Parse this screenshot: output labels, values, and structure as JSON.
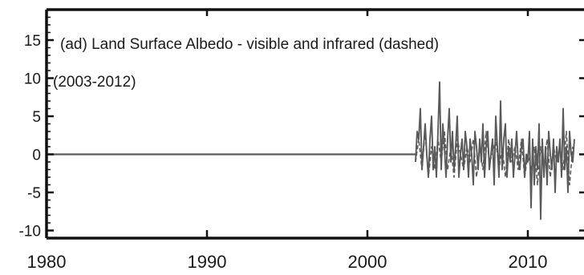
{
  "chart_data": {
    "type": "line",
    "annotation_line1": "(ad) Land Surface Albedo - visible and infrared (dashed)",
    "annotation_line2": "(2003-2012)",
    "xlim": [
      1980,
      2013.5
    ],
    "ylim": [
      -11,
      19
    ],
    "x_ticks": [
      1980,
      1990,
      2000,
      2010
    ],
    "y_ticks": [
      15,
      10,
      5,
      0,
      -5,
      -10
    ],
    "grid": false,
    "colors": {
      "series": "#5a5a5a",
      "zero_line": "#5a5a5a",
      "axes": "#111111"
    },
    "series": [
      {
        "style": "solid",
        "x": [
          2003.0,
          2003.1,
          2003.2,
          2003.3,
          2003.4,
          2003.5,
          2003.6,
          2003.7,
          2003.8,
          2003.9,
          2004.0,
          2004.1,
          2004.2,
          2004.3,
          2004.4,
          2004.5,
          2004.6,
          2004.7,
          2004.8,
          2004.9,
          2005.0,
          2005.1,
          2005.2,
          2005.3,
          2005.4,
          2005.5,
          2005.6,
          2005.7,
          2005.8,
          2005.9,
          2006.0,
          2006.1,
          2006.2,
          2006.3,
          2006.4,
          2006.5,
          2006.6,
          2006.7,
          2006.8,
          2006.9,
          2007.0,
          2007.1,
          2007.2,
          2007.3,
          2007.4,
          2007.5,
          2007.6,
          2007.7,
          2007.8,
          2007.9,
          2008.0,
          2008.1,
          2008.2,
          2008.3,
          2008.4,
          2008.5,
          2008.6,
          2008.7,
          2008.8,
          2008.9,
          2009.0,
          2009.1,
          2009.2,
          2009.3,
          2009.4,
          2009.5,
          2009.6,
          2009.7,
          2009.8,
          2009.9,
          2010.0,
          2010.1,
          2010.2,
          2010.3,
          2010.4,
          2010.5,
          2010.6,
          2010.7,
          2010.8,
          2010.9,
          2011.0,
          2011.1,
          2011.2,
          2011.3,
          2011.4,
          2011.5,
          2011.6,
          2011.7,
          2011.8,
          2011.9,
          2012.0,
          2012.1,
          2012.2,
          2012.3,
          2012.4,
          2012.5,
          2012.6,
          2012.7,
          2012.8,
          2012.9
        ],
        "y": [
          -1,
          3,
          2,
          6,
          -2,
          1,
          4,
          0,
          -3,
          2,
          5,
          -2,
          1,
          -3,
          3,
          9.5,
          -2,
          4,
          1,
          -3,
          2,
          6,
          -1,
          3,
          -2,
          1,
          5,
          -3,
          0,
          2,
          -2,
          3,
          1,
          -3,
          2,
          0,
          -4,
          3,
          1,
          -2,
          2,
          -1,
          4,
          -3,
          1,
          3,
          -2,
          0,
          2,
          -4,
          5,
          1,
          -3,
          7,
          -2,
          2,
          4,
          -3,
          1,
          -1,
          2,
          -3,
          0,
          3,
          -1,
          -2,
          1,
          2,
          -3,
          0,
          -1,
          3,
          -7,
          2,
          -4,
          1,
          -2,
          4,
          -8.5,
          2,
          -3,
          1,
          -4,
          3,
          0,
          -2,
          2,
          -5,
          1,
          -1,
          2,
          -3,
          6,
          -2,
          1,
          -5,
          3,
          0,
          -1,
          2
        ]
      },
      {
        "style": "dashed",
        "x": [
          2003.0,
          2003.2,
          2003.4,
          2003.6,
          2003.8,
          2004.0,
          2004.2,
          2004.4,
          2004.6,
          2004.8,
          2005.0,
          2005.2,
          2005.4,
          2005.6,
          2005.8,
          2006.0,
          2006.2,
          2006.4,
          2006.6,
          2006.8,
          2007.0,
          2007.2,
          2007.4,
          2007.6,
          2007.8,
          2008.0,
          2008.2,
          2008.4,
          2008.6,
          2008.8,
          2009.0,
          2009.2,
          2009.4,
          2009.6,
          2009.8,
          2010.0,
          2010.2,
          2010.4,
          2010.6,
          2010.8,
          2011.0,
          2011.2,
          2011.4,
          2011.6,
          2011.8,
          2012.0,
          2012.2,
          2012.4,
          2012.6,
          2012.8
        ],
        "y": [
          -1,
          2,
          -2,
          3,
          -3,
          1,
          -2,
          2,
          -1,
          3,
          -2,
          1,
          -3,
          2,
          0,
          -2,
          1,
          -1,
          2,
          -3,
          1,
          -2,
          3,
          -1,
          0,
          2,
          -2,
          1,
          -3,
          2,
          -1,
          1,
          -2,
          2,
          -3,
          0,
          -2,
          1,
          -4,
          1,
          -2,
          2,
          -3,
          1,
          -1,
          1,
          -2,
          3,
          -4,
          1
        ]
      }
    ],
    "zero_line": {
      "x": [
        1980,
        2003
      ],
      "y": [
        0,
        0
      ]
    }
  }
}
